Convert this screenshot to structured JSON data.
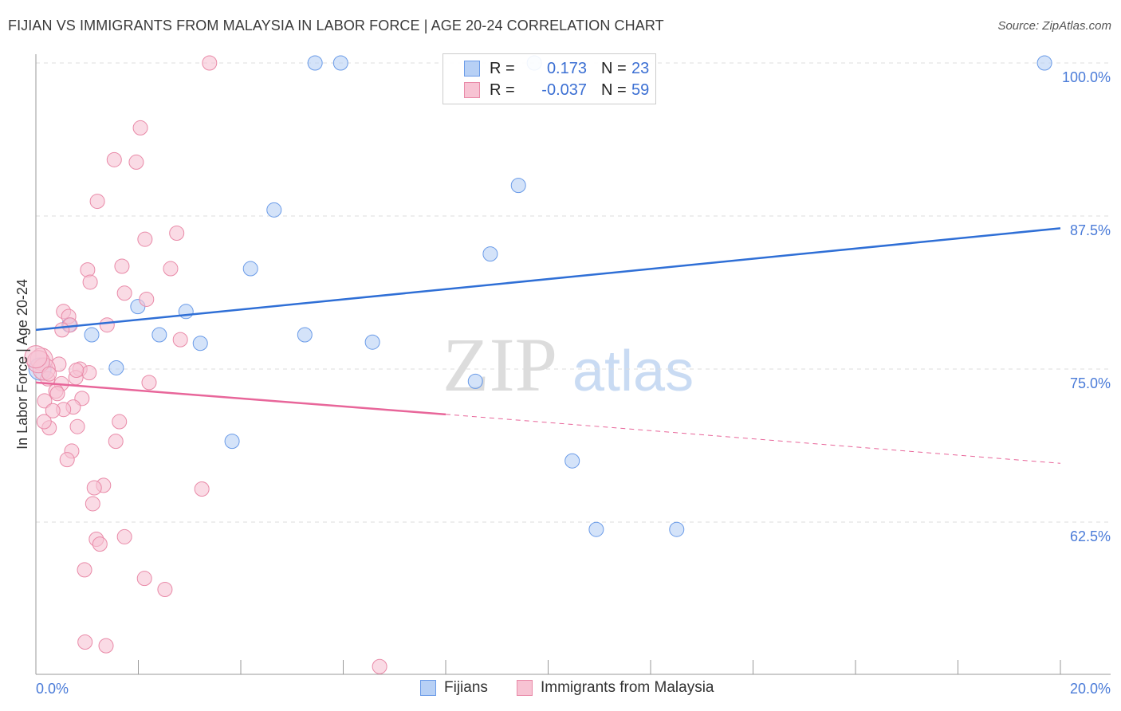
{
  "header": {
    "title": "FIJIAN VS IMMIGRANTS FROM MALAYSIA IN LABOR FORCE | AGE 20-24 CORRELATION CHART",
    "source": "Source: ZipAtlas.com"
  },
  "watermark": "ZIPatlas",
  "legend": {
    "rows": [
      {
        "r_label": "R =",
        "r_value": "0.173",
        "n_label": "N =",
        "n_value": "23"
      },
      {
        "r_label": "R =",
        "r_value": "-0.037",
        "n_label": "N =",
        "n_value": "59"
      }
    ]
  },
  "chart_data": {
    "type": "scatter",
    "title": "FIJIAN VS IMMIGRANTS FROM MALAYSIA IN LABOR FORCE | AGE 20-24 CORRELATION CHART",
    "xlabel": "",
    "ylabel": "In Labor Force | Age 20-24",
    "xlim": [
      0,
      20
    ],
    "ylim": [
      49.5,
      101
    ],
    "x_tick_labels": [
      "0.0%",
      "20.0%"
    ],
    "y_ticks": [
      62.5,
      75,
      87.5,
      100
    ],
    "y_tick_labels": [
      "62.5%",
      "75.0%",
      "87.5%",
      "100.0%"
    ],
    "legend_placement": "top-center",
    "series": [
      {
        "name": "Fijians",
        "color": "#6a9be8",
        "fill": "#b7d0f5",
        "trend": {
          "x": [
            0,
            20
          ],
          "y": [
            78.2,
            86.5
          ],
          "color": "#2f6fd6"
        },
        "points": [
          [
            5.45,
            100
          ],
          [
            5.95,
            100
          ],
          [
            9.73,
            100
          ],
          [
            19.69,
            100
          ],
          [
            9.42,
            90.0
          ],
          [
            4.65,
            88.0
          ],
          [
            8.87,
            84.4
          ],
          [
            4.19,
            83.2
          ],
          [
            1.99,
            80.1
          ],
          [
            2.93,
            79.7
          ],
          [
            0.65,
            78.6
          ],
          [
            1.09,
            77.8
          ],
          [
            2.41,
            77.8
          ],
          [
            5.25,
            77.8
          ],
          [
            3.21,
            77.1
          ],
          [
            6.57,
            77.2
          ],
          [
            1.57,
            75.1
          ],
          [
            8.58,
            74.0
          ],
          [
            3.83,
            69.1
          ],
          [
            10.47,
            67.5
          ],
          [
            10.94,
            61.9
          ],
          [
            12.51,
            61.9
          ],
          [
            0.08,
            75.0
          ]
        ]
      },
      {
        "name": "Immigrants from Malaysia",
        "color": "#e98aa8",
        "fill": "#f7c3d3",
        "trend": {
          "x": [
            0,
            8,
            20
          ],
          "y": [
            73.9,
            71.3,
            67.3
          ],
          "color": "#e8669a",
          "solid_until": 8
        },
        "points": [
          [
            3.39,
            100
          ],
          [
            2.04,
            94.7
          ],
          [
            1.53,
            92.1
          ],
          [
            1.96,
            91.9
          ],
          [
            1.2,
            88.7
          ],
          [
            2.13,
            85.6
          ],
          [
            2.75,
            86.1
          ],
          [
            1.01,
            83.1
          ],
          [
            1.68,
            83.4
          ],
          [
            2.63,
            83.2
          ],
          [
            1.06,
            82.1
          ],
          [
            1.73,
            81.2
          ],
          [
            2.16,
            80.7
          ],
          [
            0.54,
            79.7
          ],
          [
            0.64,
            79.3
          ],
          [
            1.39,
            78.6
          ],
          [
            0.67,
            78.6
          ],
          [
            2.82,
            77.4
          ],
          [
            0.11,
            75.8
          ],
          [
            0.45,
            75.4
          ],
          [
            0.86,
            75.0
          ],
          [
            1.04,
            74.7
          ],
          [
            0.78,
            74.3
          ],
          [
            0.23,
            74.2
          ],
          [
            2.21,
            73.9
          ],
          [
            0.5,
            73.8
          ],
          [
            0.39,
            73.2
          ],
          [
            0.9,
            72.6
          ],
          [
            0.17,
            72.4
          ],
          [
            0.73,
            71.9
          ],
          [
            0.54,
            71.7
          ],
          [
            0.33,
            71.6
          ],
          [
            0.81,
            70.3
          ],
          [
            1.63,
            70.7
          ],
          [
            0.26,
            70.2
          ],
          [
            0.16,
            70.7
          ],
          [
            1.56,
            69.1
          ],
          [
            0.7,
            68.3
          ],
          [
            0.61,
            67.6
          ],
          [
            1.32,
            65.5
          ],
          [
            1.14,
            65.3
          ],
          [
            1.11,
            64.0
          ],
          [
            3.24,
            65.2
          ],
          [
            1.18,
            61.1
          ],
          [
            1.25,
            60.7
          ],
          [
            1.73,
            61.3
          ],
          [
            0.95,
            58.6
          ],
          [
            2.12,
            57.9
          ],
          [
            2.52,
            57.0
          ],
          [
            0.96,
            52.7
          ],
          [
            1.37,
            52.4
          ],
          [
            6.71,
            50.7
          ],
          [
            0.16,
            75.0
          ],
          [
            0.05,
            75.6
          ],
          [
            0.26,
            74.6
          ],
          [
            0.42,
            73.0
          ],
          [
            0.79,
            74.9
          ],
          [
            0.51,
            78.2
          ],
          [
            0.0,
            76.0
          ]
        ]
      }
    ]
  }
}
